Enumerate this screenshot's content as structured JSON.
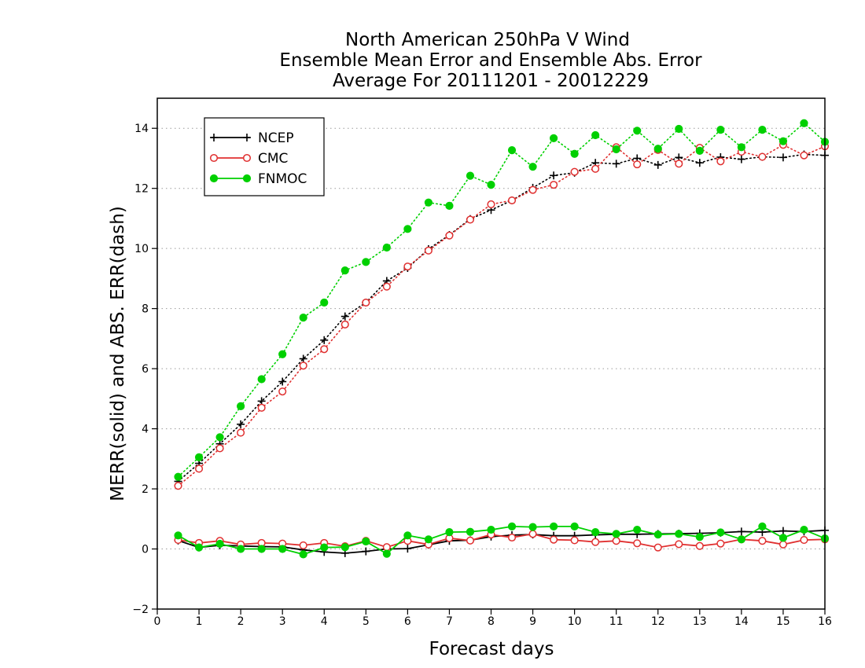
{
  "chart_data": {
    "type": "line",
    "title": [
      "North American 250hPa V Wind",
      "Ensemble Mean Error and Ensemble Abs. Error",
      "Average For 20111201 - 20012229"
    ],
    "xlabel": "Forecast days",
    "ylabel": "MERR(solid) and ABS. ERR(dash)",
    "xlim": [
      0,
      16
    ],
    "ylim": [
      -2,
      15
    ],
    "x_ticks": [
      0,
      1,
      2,
      3,
      4,
      5,
      6,
      7,
      8,
      9,
      10,
      11,
      12,
      13,
      14,
      15,
      16
    ],
    "y_ticks": [
      -2,
      0,
      2,
      4,
      6,
      8,
      10,
      12,
      14
    ],
    "grid": "horizontal dotted",
    "legend_position": "top-left",
    "x": [
      0.5,
      1,
      1.5,
      2,
      2.5,
      3,
      3.5,
      4,
      4.5,
      5,
      5.5,
      6,
      6.5,
      7,
      7.5,
      8,
      8.5,
      9,
      9.5,
      10,
      10.5,
      11,
      11.5,
      12,
      12.5,
      13,
      13.5,
      14,
      14.5,
      15,
      15.5,
      16
    ],
    "series": [
      {
        "name": "NCEP",
        "color": "#000000",
        "marker": "plus",
        "mean_error": [
          0.28,
          0.05,
          0.12,
          0.1,
          0.08,
          0.07,
          -0.03,
          -0.1,
          -0.14,
          -0.08,
          0.0,
          0.01,
          0.14,
          0.27,
          0.29,
          0.41,
          0.46,
          0.48,
          0.44,
          0.44,
          0.47,
          0.49,
          0.49,
          0.5,
          0.51,
          0.52,
          0.54,
          0.58,
          0.56,
          0.6,
          0.58,
          0.62
        ],
        "abs_error": [
          2.25,
          2.85,
          3.5,
          4.15,
          4.92,
          5.57,
          6.33,
          6.95,
          7.74,
          8.2,
          8.92,
          9.35,
          9.98,
          10.45,
          10.98,
          11.28,
          11.6,
          12.02,
          12.43,
          12.52,
          12.85,
          12.82,
          13.0,
          12.78,
          13.03,
          12.85,
          13.04,
          12.97,
          13.05,
          13.03,
          13.13,
          13.1
        ]
      },
      {
        "name": "CMC",
        "color": "#e03030",
        "marker": "circle-open",
        "mean_error": [
          0.3,
          0.2,
          0.27,
          0.15,
          0.2,
          0.18,
          0.12,
          0.2,
          0.09,
          0.27,
          0.06,
          0.27,
          0.15,
          0.36,
          0.28,
          0.48,
          0.38,
          0.5,
          0.31,
          0.29,
          0.23,
          0.27,
          0.19,
          0.05,
          0.16,
          0.1,
          0.18,
          0.32,
          0.27,
          0.15,
          0.3,
          0.32
        ],
        "abs_error": [
          2.1,
          2.67,
          3.35,
          3.87,
          4.7,
          5.24,
          6.1,
          6.65,
          7.47,
          8.2,
          8.73,
          9.4,
          9.93,
          10.43,
          10.96,
          11.47,
          11.6,
          11.95,
          12.12,
          12.55,
          12.65,
          13.37,
          12.8,
          13.28,
          12.82,
          13.35,
          12.9,
          13.22,
          13.05,
          13.45,
          13.1,
          13.4
        ]
      },
      {
        "name": "FNMOC",
        "color": "#00d000",
        "marker": "circle-filled",
        "mean_error": [
          0.45,
          0.05,
          0.17,
          0.0,
          0.0,
          0.0,
          -0.18,
          0.05,
          0.06,
          0.25,
          -0.16,
          0.45,
          0.32,
          0.56,
          0.57,
          0.64,
          0.75,
          0.73,
          0.75,
          0.75,
          0.56,
          0.5,
          0.64,
          0.48,
          0.5,
          0.4,
          0.55,
          0.32,
          0.75,
          0.37,
          0.64,
          0.35
        ],
        "abs_error": [
          2.4,
          3.05,
          3.72,
          4.75,
          5.65,
          6.48,
          7.7,
          8.2,
          9.27,
          9.55,
          10.03,
          10.65,
          11.53,
          11.42,
          12.42,
          12.12,
          13.27,
          12.72,
          13.67,
          13.15,
          13.77,
          13.3,
          13.92,
          13.32,
          13.98,
          13.25,
          13.95,
          13.37,
          13.95,
          13.57,
          14.17,
          13.55
        ]
      }
    ]
  }
}
